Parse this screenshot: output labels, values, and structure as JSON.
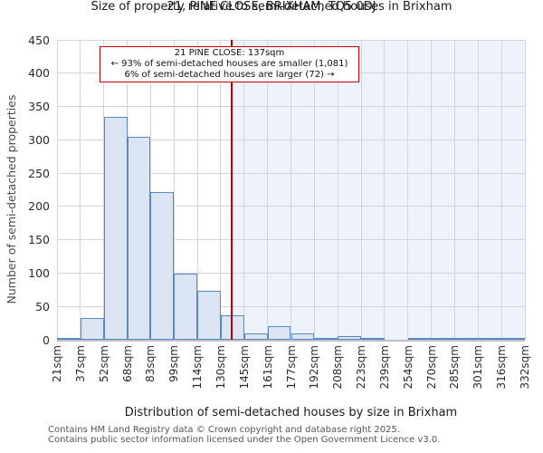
{
  "page": {
    "title_line1": "21, PINE CLOSE, BRIXHAM, TQ5 0DJ",
    "title_line2": "Size of property relative to semi-detached houses in Brixham"
  },
  "annotation": {
    "line1": "21 PINE CLOSE: 137sqm",
    "line2": "← 93% of semi-detached houses are smaller (1,081)",
    "line3": "6% of semi-detached houses are larger (72) →"
  },
  "chart_data": {
    "type": "bar",
    "title": "21, PINE CLOSE, BRIXHAM, TQ5 0DJ",
    "subtitle": "Size of property relative to semi-detached houses in Brixham",
    "xlabel": "Distribution of semi-detached houses by size in Brixham",
    "ylabel": "Number of semi-detached properties",
    "ylim": [
      0,
      450
    ],
    "y_ticks": [
      0,
      50,
      100,
      150,
      200,
      250,
      300,
      350,
      400,
      450
    ],
    "x_range_sqm": [
      21,
      332
    ],
    "x_tick_labels": [
      "21sqm",
      "37sqm",
      "52sqm",
      "68sqm",
      "83sqm",
      "99sqm",
      "114sqm",
      "130sqm",
      "145sqm",
      "161sqm",
      "177sqm",
      "192sqm",
      "208sqm",
      "223sqm",
      "239sqm",
      "254sqm",
      "270sqm",
      "285sqm",
      "301sqm",
      "316sqm",
      "332sqm"
    ],
    "bin_count": 20,
    "values": [
      3,
      32,
      335,
      304,
      222,
      99,
      73,
      37,
      9,
      20,
      10,
      2,
      5,
      1,
      0,
      1,
      1,
      1,
      1,
      1
    ],
    "marker_sqm": 137,
    "grid": true,
    "legend_position": "none",
    "colors": {
      "bar_fill": "#dbe5f3",
      "bar_stroke": "#5b87c5",
      "marker_line": "#c00000",
      "shade_right_of_marker": "#eef2fb",
      "gridline": "#d2d6dc",
      "axis_line": "#bfc3c9"
    }
  },
  "footer": {
    "line1": "Contains HM Land Registry data © Crown copyright and database right 2025.",
    "line2": "Contains public sector information licensed under the Open Government Licence v3.0."
  }
}
